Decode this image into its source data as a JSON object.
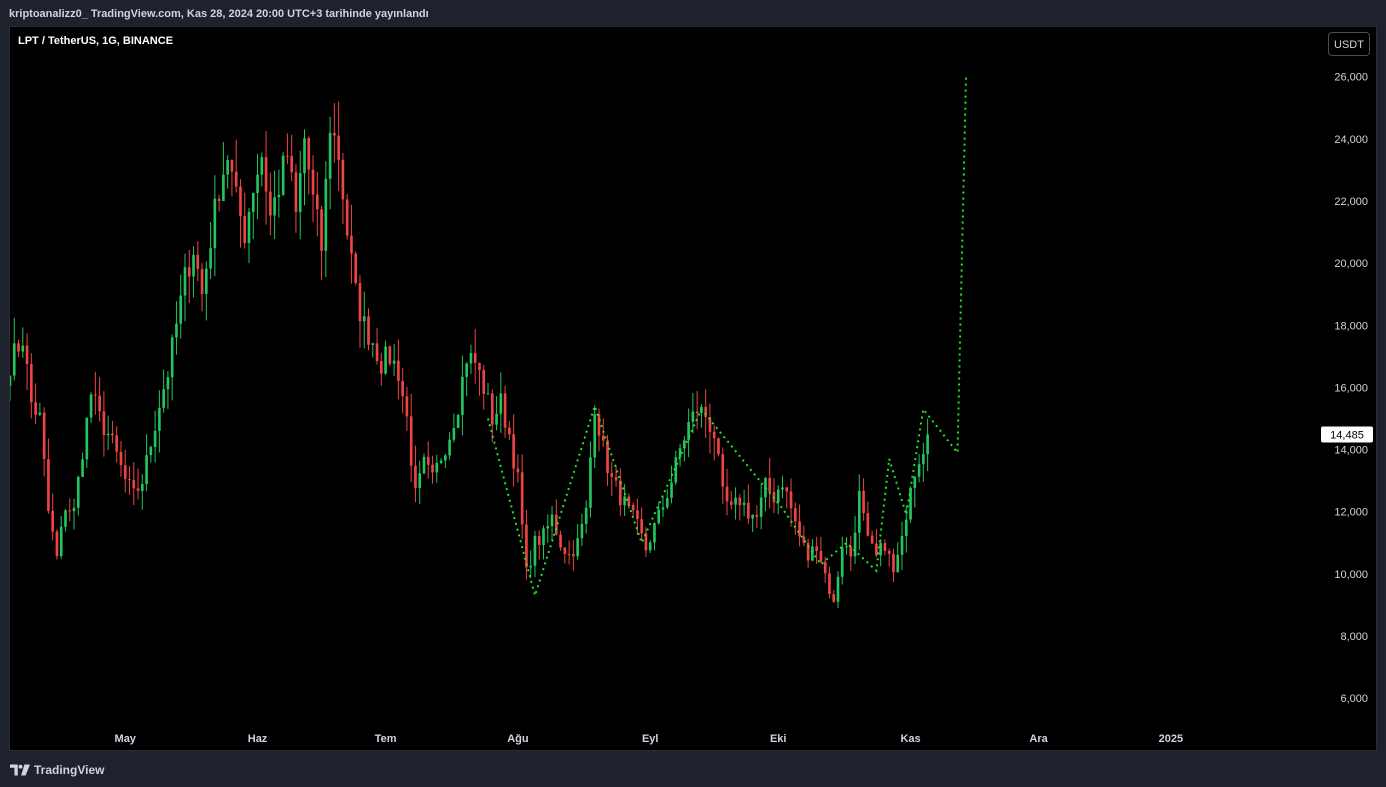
{
  "header": {
    "publish_info": "kriptoanalizz0_ TradingView.com, Kas 28, 2024 20:00 UTC+3 tarihinde yayınlandı"
  },
  "chart_header": {
    "symbol": "LPT / TetherUS, 1G, BINANCE",
    "currency_button": "USDT"
  },
  "footer": {
    "brand": "TradingView"
  },
  "colors": {
    "up": "#22c55e",
    "down": "#ef4444",
    "projection": "#22e52a",
    "background": "#000000",
    "frame": "#1e222d"
  },
  "chart_data": {
    "type": "candlestick",
    "title": "LPT / TetherUS, 1G, BINANCE",
    "ylim": [
      5200,
      27600
    ],
    "y_ticks": [
      "6,000",
      "8,000",
      "10,000",
      "12,000",
      "14,000",
      "16,000",
      "18,000",
      "20,000",
      "22,000",
      "24,000",
      "26,000"
    ],
    "y_tick_values": [
      6000,
      8000,
      10000,
      12000,
      14000,
      16000,
      18000,
      20000,
      22000,
      24000,
      26000
    ],
    "x_ticks": [
      "May",
      "Haz",
      "Tem",
      "Ağu",
      "Eyl",
      "Eki",
      "Kas",
      "Ara",
      "2025"
    ],
    "x_tick_days": [
      0,
      31,
      61,
      92,
      123,
      153,
      184,
      214,
      245
    ],
    "x_day_range": [
      -27,
      279
    ],
    "last_price": "14,485",
    "last_price_value": 14485,
    "series": [
      {
        "kind": "close_path",
        "points": [
          [
            -27,
            16800
          ],
          [
            -24,
            17600
          ],
          [
            -22,
            15500
          ],
          [
            -20,
            15000
          ],
          [
            -18,
            12000
          ],
          [
            -16,
            10500
          ],
          [
            -14,
            12200
          ],
          [
            -12,
            12000
          ],
          [
            -10,
            14000
          ],
          [
            -8,
            15800
          ],
          [
            -6,
            15000
          ],
          [
            -4,
            14500
          ],
          [
            -2,
            13800
          ],
          [
            0,
            13000
          ],
          [
            2,
            12500
          ],
          [
            4,
            13000
          ],
          [
            6,
            14200
          ],
          [
            8,
            15500
          ],
          [
            10,
            16500
          ],
          [
            12,
            18000
          ],
          [
            14,
            19500
          ],
          [
            16,
            20500
          ],
          [
            18,
            19000
          ],
          [
            20,
            20800
          ],
          [
            22,
            22500
          ],
          [
            24,
            23500
          ],
          [
            26,
            22000
          ],
          [
            28,
            21000
          ],
          [
            30,
            22500
          ],
          [
            32,
            23500
          ],
          [
            34,
            21500
          ],
          [
            36,
            22500
          ],
          [
            38,
            23500
          ],
          [
            40,
            21500
          ],
          [
            42,
            24000
          ],
          [
            44,
            22000
          ],
          [
            46,
            20500
          ],
          [
            48,
            24500
          ],
          [
            50,
            23500
          ],
          [
            52,
            21000
          ],
          [
            54,
            19000
          ],
          [
            56,
            18000
          ],
          [
            58,
            17500
          ],
          [
            60,
            16800
          ],
          [
            62,
            17000
          ],
          [
            64,
            16500
          ],
          [
            66,
            15000
          ],
          [
            68,
            12500
          ],
          [
            70,
            13500
          ],
          [
            72,
            13000
          ],
          [
            74,
            13800
          ],
          [
            76,
            14500
          ],
          [
            78,
            15500
          ],
          [
            80,
            17000
          ],
          [
            82,
            16800
          ],
          [
            84,
            16000
          ],
          [
            86,
            15000
          ],
          [
            88,
            15500
          ],
          [
            90,
            14500
          ],
          [
            92,
            13000
          ],
          [
            94,
            10000
          ],
          [
            96,
            11000
          ],
          [
            98,
            11200
          ],
          [
            100,
            11800
          ],
          [
            102,
            11000
          ],
          [
            104,
            10600
          ],
          [
            106,
            11000
          ],
          [
            108,
            12000
          ],
          [
            110,
            15500
          ],
          [
            112,
            14000
          ],
          [
            114,
            13000
          ],
          [
            116,
            12500
          ],
          [
            118,
            12000
          ],
          [
            120,
            11500
          ],
          [
            122,
            10800
          ],
          [
            124,
            11500
          ],
          [
            126,
            12200
          ],
          [
            128,
            13000
          ],
          [
            130,
            14000
          ],
          [
            132,
            14800
          ],
          [
            134,
            15300
          ],
          [
            136,
            15100
          ],
          [
            138,
            14500
          ],
          [
            140,
            12500
          ],
          [
            142,
            12000
          ],
          [
            144,
            12400
          ],
          [
            146,
            12000
          ],
          [
            148,
            11800
          ],
          [
            150,
            12800
          ],
          [
            152,
            12500
          ],
          [
            154,
            13000
          ],
          [
            156,
            12100
          ],
          [
            158,
            11200
          ],
          [
            160,
            10500
          ],
          [
            162,
            11000
          ],
          [
            164,
            10000
          ],
          [
            166,
            9000
          ],
          [
            168,
            11000
          ],
          [
            170,
            10600
          ],
          [
            172,
            12500
          ],
          [
            174,
            11000
          ],
          [
            176,
            10500
          ],
          [
            178,
            11000
          ],
          [
            180,
            10000
          ],
          [
            182,
            11000
          ],
          [
            184,
            13000
          ],
          [
            186,
            13800
          ],
          [
            188,
            14485
          ]
        ]
      },
      {
        "kind": "projection",
        "points": [
          [
            85,
            15000
          ],
          [
            96,
            9300
          ],
          [
            110,
            15400
          ],
          [
            121,
            11000
          ],
          [
            135,
            15300
          ],
          [
            154,
            12100
          ],
          [
            163,
            10300
          ],
          [
            169,
            11000
          ],
          [
            176,
            10100
          ],
          [
            179,
            13700
          ],
          [
            183,
            11900
          ],
          [
            187,
            15300
          ],
          [
            195,
            13900
          ],
          [
            197,
            26000
          ]
        ]
      }
    ]
  }
}
